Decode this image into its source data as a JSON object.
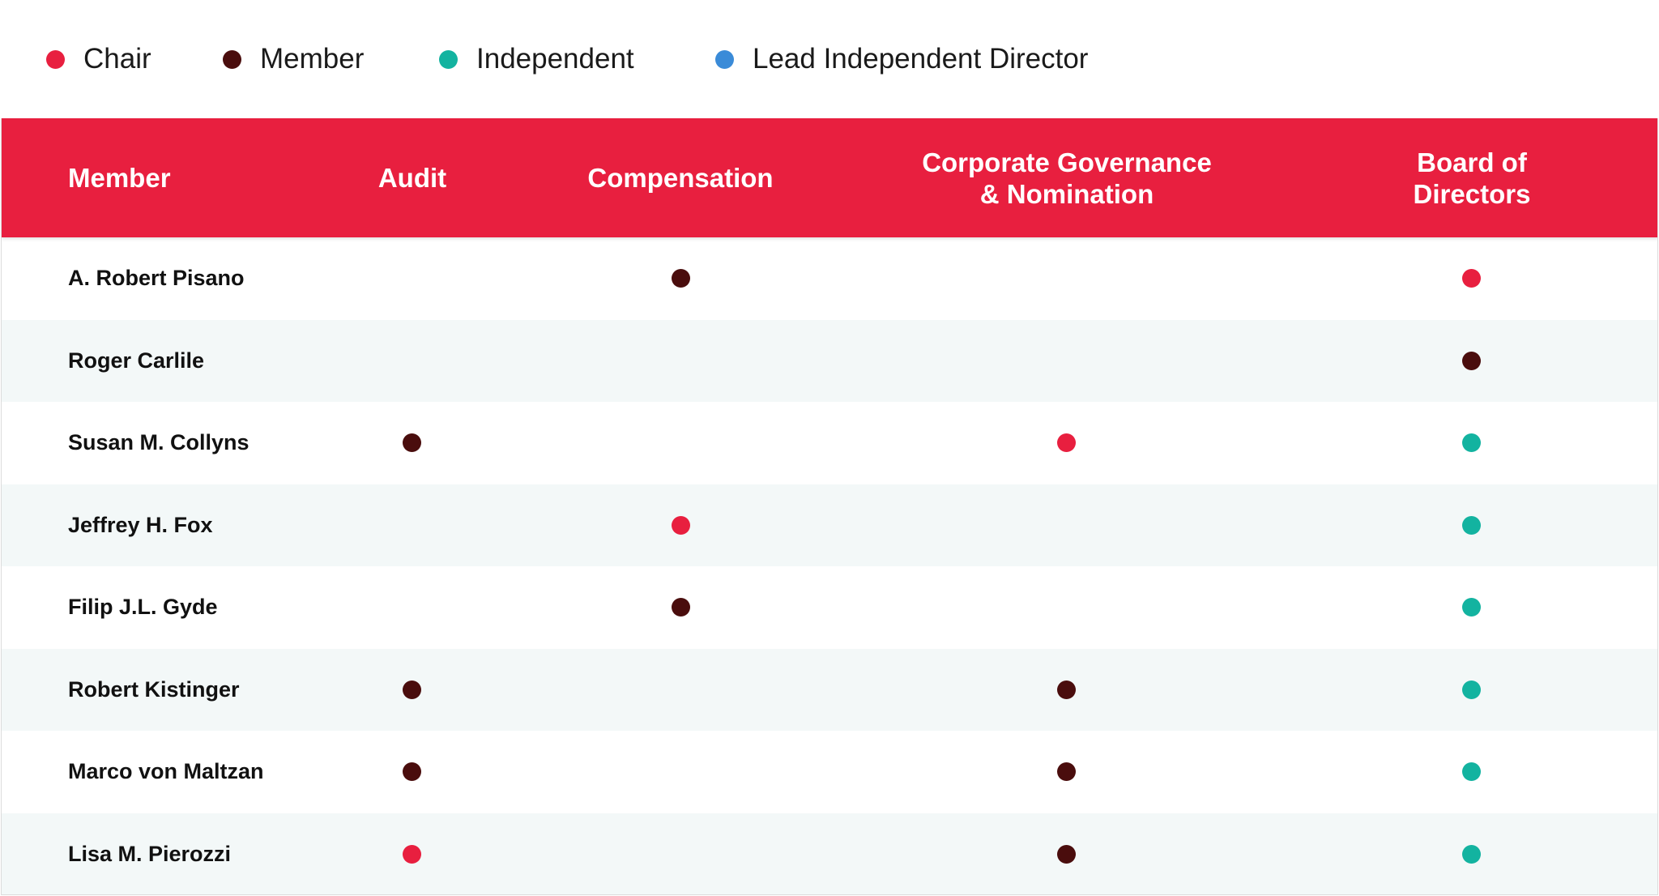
{
  "legend": [
    {
      "role": "chair",
      "label": "Chair",
      "color": "#e81f3f"
    },
    {
      "role": "member",
      "label": "Member",
      "color": "#4a0d0d"
    },
    {
      "role": "independent",
      "label": "Independent",
      "color": "#13b3a0"
    },
    {
      "role": "lead",
      "label": "Lead Independent Director",
      "color": "#3a8bd8"
    }
  ],
  "table": {
    "header": {
      "member": "Member",
      "audit": "Audit",
      "compensation": "Compensation",
      "governance_line1": "Corporate Governance",
      "governance_line2": "& Nomination",
      "board": "Board of Directors"
    },
    "rows": [
      {
        "name": "A. Robert Pisano",
        "audit": "",
        "compensation": "member",
        "governance": "",
        "board": "chair"
      },
      {
        "name": "Roger Carlile",
        "audit": "",
        "compensation": "",
        "governance": "",
        "board": "member"
      },
      {
        "name": "Susan M. Collyns",
        "audit": "member",
        "compensation": "",
        "governance": "chair",
        "board": "independent"
      },
      {
        "name": "Jeffrey H. Fox",
        "audit": "",
        "compensation": "chair",
        "governance": "",
        "board": "independent"
      },
      {
        "name": "Filip J.L. Gyde",
        "audit": "",
        "compensation": "member",
        "governance": "",
        "board": "independent"
      },
      {
        "name": "Robert Kistinger",
        "audit": "member",
        "compensation": "",
        "governance": "member",
        "board": "independent"
      },
      {
        "name": "Marco von Maltzan",
        "audit": "member",
        "compensation": "",
        "governance": "member",
        "board": "independent"
      },
      {
        "name": "Lisa M. Pierozzi",
        "audit": "chair",
        "compensation": "",
        "governance": "member",
        "board": "independent"
      }
    ]
  }
}
